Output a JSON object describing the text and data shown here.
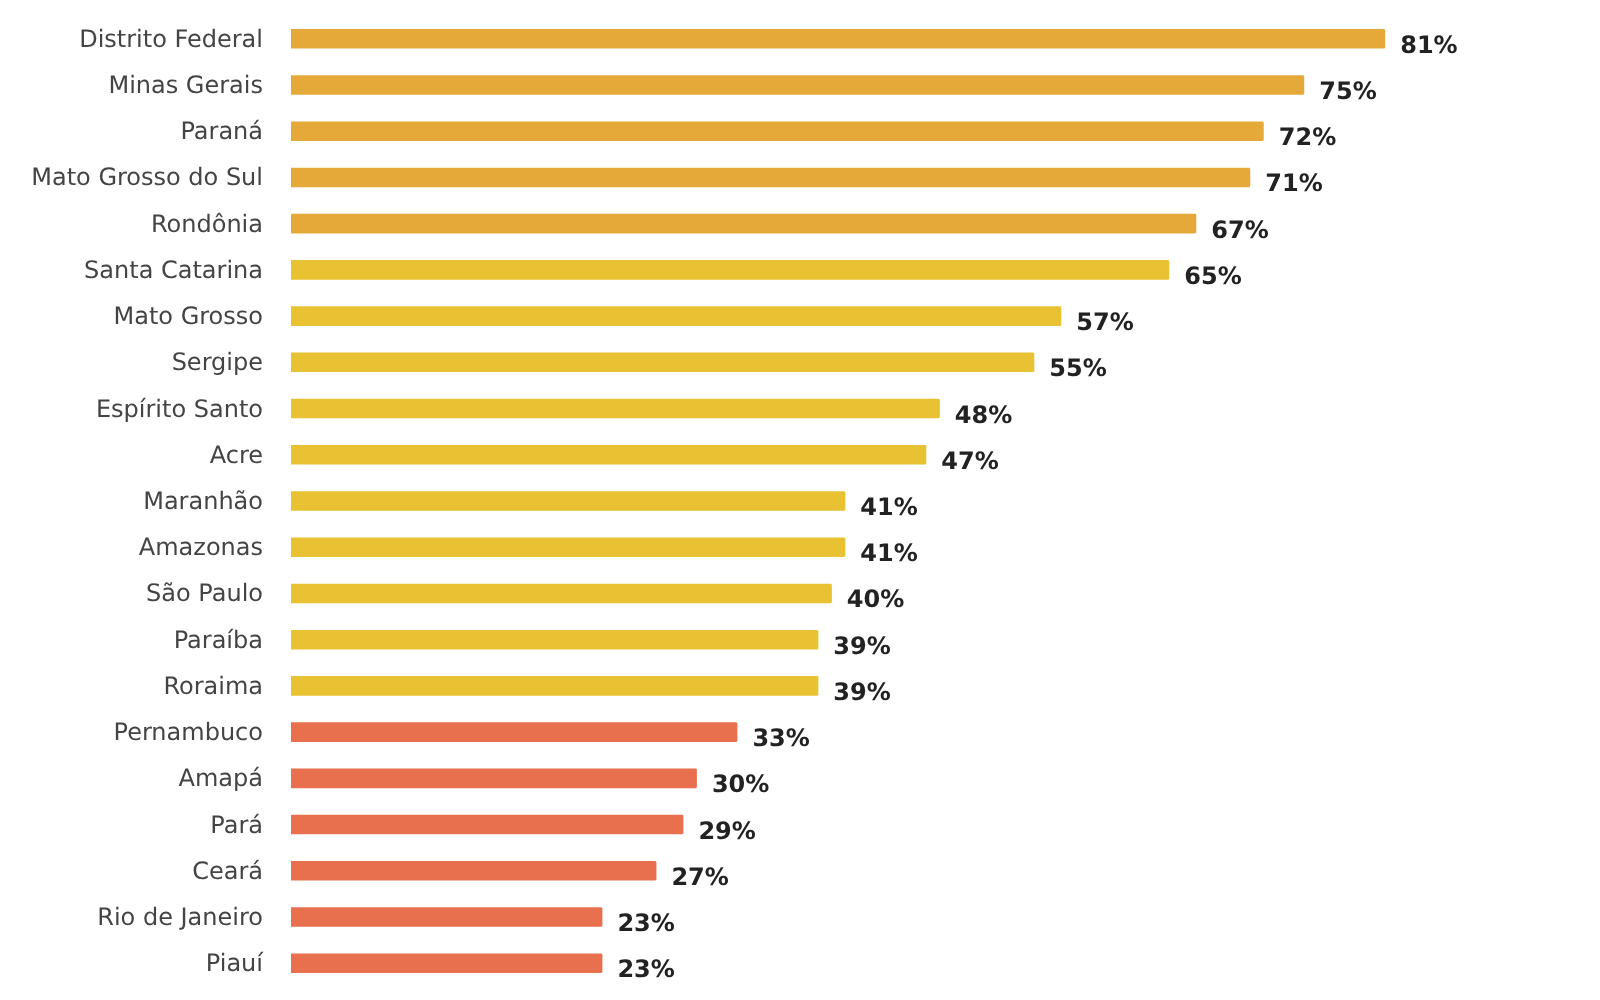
{
  "chart_data": {
    "type": "bar",
    "orientation": "horizontal",
    "grid": false,
    "value_labels": [
      "81%",
      "75%",
      "72%",
      "71%",
      "67%",
      "65%",
      "57%",
      "55%",
      "48%",
      "47%",
      "41%",
      "41%",
      "40%",
      "39%",
      "39%",
      "33%",
      "30%",
      "29%",
      "27%",
      "23%",
      "23%"
    ],
    "categories": [
      "Distrito Federal",
      "Minas Gerais",
      "Paraná",
      "Mato Grosso do Sul",
      "Rondônia",
      "Santa Catarina",
      "Mato Grosso",
      "Sergipe",
      "Espírito Santo",
      "Acre",
      "Maranhão",
      "Amazonas",
      "São Paulo",
      "Paraíba",
      "Roraima",
      "Pernambuco",
      "Amapá",
      "Pará",
      "Ceará",
      "Rio de Janeiro",
      "Piauí"
    ],
    "values": [
      81,
      75,
      72,
      71,
      67,
      65,
      57,
      55,
      48,
      47,
      41,
      41,
      40,
      39,
      39,
      33,
      30,
      29,
      27,
      23,
      23
    ],
    "colors": [
      "#e5a93a",
      "#e5a93a",
      "#e5a93a",
      "#e5a93a",
      "#e5a93a",
      "#e8c232",
      "#e8c232",
      "#e8c232",
      "#e8c232",
      "#e8c232",
      "#e8c232",
      "#e8c232",
      "#e8c232",
      "#e8c232",
      "#e8c232",
      "#e8704f",
      "#e8704f",
      "#e8704f",
      "#e8704f",
      "#e8704f",
      "#e8704f"
    ]
  }
}
